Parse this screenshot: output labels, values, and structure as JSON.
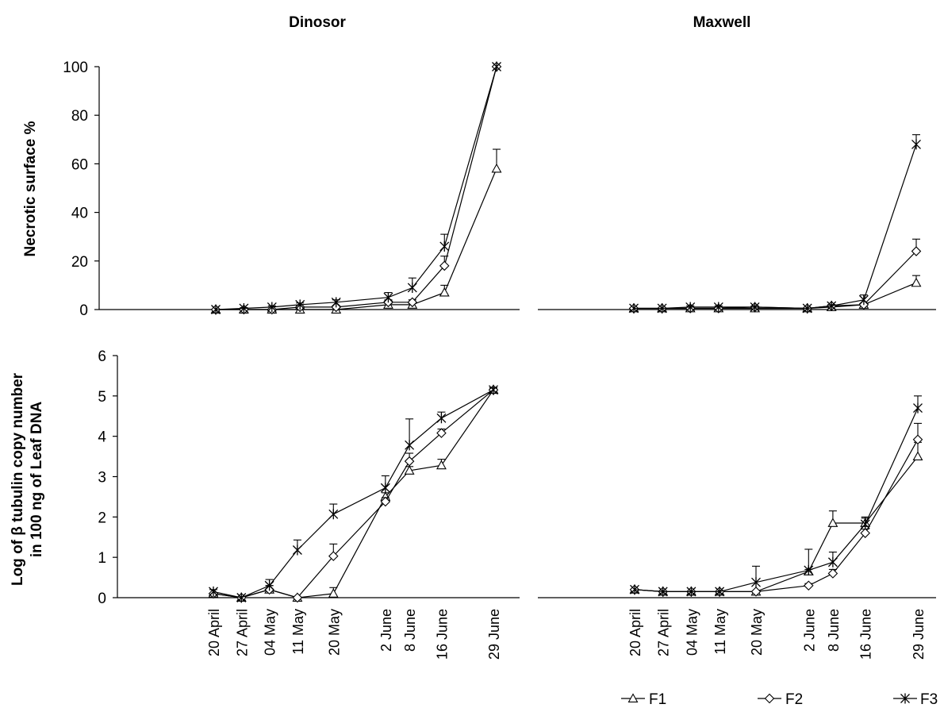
{
  "figure": {
    "panel_titles": [
      "Dinosor",
      "Maxwell"
    ],
    "ylabel_top": "Necrotic surface %",
    "ylabel_bottom_line1": "Log of β tubulin copy number",
    "ylabel_bottom_line2": "in 100 ng of Leaf DNA",
    "legend": [
      {
        "label": "F1",
        "marker": "triangle"
      },
      {
        "label": "F2",
        "marker": "diamond"
      },
      {
        "label": "F3",
        "marker": "asterisk"
      }
    ]
  },
  "chart_data": [
    {
      "type": "line",
      "title": "Dinosor",
      "ylabel": "Necrotic surface %",
      "xlabel": "",
      "ylim": [
        0,
        100
      ],
      "yticks": [
        0,
        20,
        40,
        60,
        80,
        100
      ],
      "x": [
        0,
        7,
        14,
        21,
        30,
        43,
        49,
        57,
        70
      ],
      "x_labels": [
        "20 April",
        "27 April",
        "04 May",
        "11 May",
        "20 May",
        "2 June",
        "8 June",
        "16 June",
        "29 June"
      ],
      "series": [
        {
          "name": "F1",
          "marker": "triangle",
          "values": [
            0,
            0,
            0,
            0,
            0,
            2,
            2,
            7,
            58
          ],
          "errors": [
            0,
            0,
            0,
            0,
            0,
            0.5,
            0.5,
            3,
            8
          ]
        },
        {
          "name": "F2",
          "marker": "diamond",
          "values": [
            0,
            0,
            0,
            1,
            1,
            3,
            3,
            18,
            100
          ],
          "errors": [
            0,
            0,
            0,
            0.5,
            0.5,
            1,
            1,
            4,
            0
          ]
        },
        {
          "name": "F3",
          "marker": "asterisk",
          "values": [
            0,
            0.5,
            1,
            2,
            3,
            5,
            9,
            26,
            100
          ],
          "errors": [
            0,
            0.3,
            0.5,
            0.7,
            1,
            2,
            4,
            5,
            0
          ]
        }
      ]
    },
    {
      "type": "line",
      "title": "Maxwell",
      "ylabel": "Necrotic surface %",
      "xlabel": "",
      "ylim": [
        0,
        100
      ],
      "x": [
        0,
        7,
        14,
        21,
        30,
        43,
        49,
        57,
        70
      ],
      "x_labels": [
        "20 April",
        "27 April",
        "04 May",
        "11 May",
        "20 May",
        "2 June",
        "8 June",
        "16 June",
        "29 June"
      ],
      "series": [
        {
          "name": "F1",
          "marker": "triangle",
          "values": [
            0.5,
            0.5,
            0.5,
            0.5,
            0.5,
            0.5,
            1,
            2,
            11
          ],
          "errors": [
            0,
            0,
            0,
            0,
            0,
            0,
            0.5,
            0.5,
            3
          ]
        },
        {
          "name": "F2",
          "marker": "diamond",
          "values": [
            0.5,
            0.5,
            0.5,
            0.5,
            1,
            0.5,
            1.5,
            2,
            24
          ],
          "errors": [
            0,
            0,
            0,
            0,
            0.5,
            0,
            0.5,
            0.5,
            5
          ]
        },
        {
          "name": "F3",
          "marker": "asterisk",
          "values": [
            0.5,
            0.5,
            1,
            1,
            1,
            0.5,
            1.5,
            4,
            68
          ],
          "errors": [
            0,
            0,
            0.5,
            0.5,
            0.5,
            0,
            0.5,
            2,
            4
          ]
        }
      ]
    },
    {
      "type": "line",
      "title": "Dinosor",
      "ylabel": "Log of β tubulin copy number in 100 ng of Leaf DNA",
      "xlabel": "",
      "ylim": [
        0,
        6
      ],
      "yticks": [
        0,
        1,
        2,
        3,
        4,
        5,
        6
      ],
      "x": [
        0,
        7,
        14,
        21,
        30,
        43,
        49,
        57,
        70
      ],
      "x_labels": [
        "20 April",
        "27 April",
        "04 May",
        "11 May",
        "20 May",
        "2 June",
        "8 June",
        "16 June",
        "29 June"
      ],
      "series": [
        {
          "name": "F1",
          "marker": "triangle",
          "values": [
            0.1,
            0,
            0.2,
            0,
            0.1,
            2.5,
            3.15,
            3.28,
            5.15
          ],
          "errors": [
            0,
            0,
            0.1,
            0,
            0.15,
            0.1,
            0.1,
            0.15,
            0.05
          ]
        },
        {
          "name": "F2",
          "marker": "diamond",
          "values": [
            0.1,
            0,
            0.2,
            0,
            1.03,
            2.38,
            3.38,
            4.08,
            5.15
          ],
          "errors": [
            0,
            0,
            0.1,
            0,
            0.3,
            0.1,
            0.2,
            0.1,
            0.05
          ]
        },
        {
          "name": "F3",
          "marker": "asterisk",
          "values": [
            0.15,
            0,
            0.3,
            1.18,
            2.07,
            2.72,
            3.78,
            4.45,
            5.15
          ],
          "errors": [
            0.05,
            0,
            0.15,
            0.25,
            0.25,
            0.3,
            0.65,
            0.15,
            0.05
          ]
        }
      ]
    },
    {
      "type": "line",
      "title": "Maxwell",
      "ylabel": "Log of β tubulin copy number in 100 ng of Leaf DNA",
      "xlabel": "",
      "ylim": [
        0,
        6
      ],
      "x": [
        0,
        7,
        14,
        21,
        30,
        43,
        49,
        57,
        70
      ],
      "x_labels": [
        "20 April",
        "27 April",
        "04 May",
        "11 May",
        "20 May",
        "2 June",
        "8 June",
        "16 June",
        "29 June"
      ],
      "series": [
        {
          "name": "F1",
          "marker": "triangle",
          "values": [
            0.2,
            0.15,
            0.15,
            0.15,
            0.15,
            0.65,
            1.85,
            1.85,
            3.5
          ],
          "errors": [
            0,
            0,
            0,
            0,
            0,
            0.05,
            0.3,
            0.15,
            0.35
          ]
        },
        {
          "name": "F2",
          "marker": "diamond",
          "values": [
            0.2,
            0.15,
            0.15,
            0.15,
            0.15,
            0.3,
            0.6,
            1.6,
            3.92
          ],
          "errors": [
            0,
            0,
            0,
            0,
            0,
            0.05,
            0.1,
            0.1,
            0.4
          ]
        },
        {
          "name": "F3",
          "marker": "asterisk",
          "values": [
            0.2,
            0.15,
            0.15,
            0.15,
            0.38,
            0.68,
            0.88,
            1.82,
            4.7
          ],
          "errors": [
            0,
            0,
            0,
            0,
            0.4,
            0.52,
            0.25,
            0.15,
            0.3
          ]
        }
      ]
    }
  ]
}
